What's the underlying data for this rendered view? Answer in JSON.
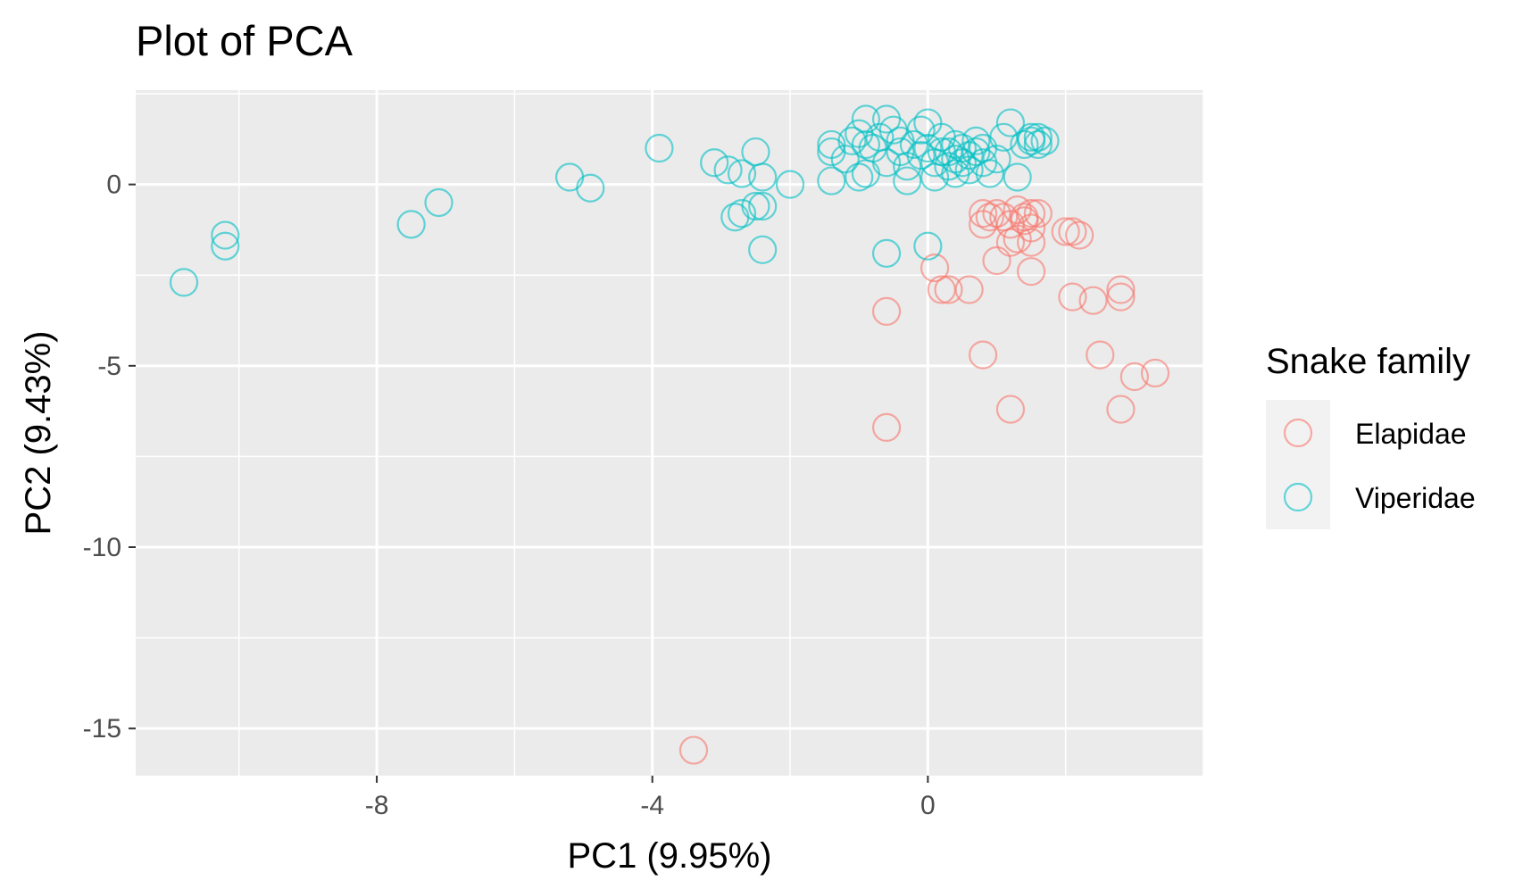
{
  "chart_data": {
    "type": "scatter",
    "title": "Plot of PCA",
    "xlabel": "PC1 (9.95%)",
    "ylabel": "PC2 (9.43%)",
    "xlim": [
      -11.5,
      4.0
    ],
    "ylim": [
      -16.3,
      2.6
    ],
    "xticks": [
      -8,
      -4,
      0
    ],
    "xtick_labels": [
      "-8",
      "-4",
      "0"
    ],
    "yticks": [
      0,
      -5,
      -10,
      -15
    ],
    "ytick_labels": [
      "0",
      "-5",
      "-10",
      "-15"
    ],
    "grid": true,
    "legend": {
      "title": "Snake family",
      "position": "right"
    },
    "series": [
      {
        "name": "Elapidae",
        "color": "#F8766D",
        "marker": "open-circle",
        "points": [
          [
            0.8,
            -0.8
          ],
          [
            0.8,
            -1.1
          ],
          [
            0.9,
            -0.9
          ],
          [
            1.0,
            -0.8
          ],
          [
            1.1,
            -0.9
          ],
          [
            1.2,
            -1.1
          ],
          [
            1.3,
            -0.7
          ],
          [
            1.4,
            -0.9
          ],
          [
            1.5,
            -0.8
          ],
          [
            1.4,
            -1.0
          ],
          [
            1.5,
            -1.2
          ],
          [
            1.6,
            -0.8
          ],
          [
            1.3,
            -1.5
          ],
          [
            1.2,
            -1.6
          ],
          [
            1.5,
            -1.6
          ],
          [
            2.0,
            -1.3
          ],
          [
            2.1,
            -1.3
          ],
          [
            2.2,
            -1.4
          ],
          [
            1.0,
            -2.1
          ],
          [
            1.5,
            -2.4
          ],
          [
            0.1,
            -2.3
          ],
          [
            0.2,
            -2.9
          ],
          [
            0.3,
            -2.9
          ],
          [
            0.6,
            -2.9
          ],
          [
            2.1,
            -3.1
          ],
          [
            2.4,
            -3.2
          ],
          [
            2.8,
            -2.9
          ],
          [
            2.8,
            -3.1
          ],
          [
            -0.6,
            -3.5
          ],
          [
            0.8,
            -4.7
          ],
          [
            2.5,
            -4.7
          ],
          [
            3.0,
            -5.3
          ],
          [
            3.3,
            -5.2
          ],
          [
            1.2,
            -6.2
          ],
          [
            2.8,
            -6.2
          ],
          [
            -0.6,
            -6.7
          ],
          [
            -3.4,
            -15.6
          ]
        ]
      },
      {
        "name": "Viperidae",
        "color": "#00BFC4",
        "marker": "open-circle",
        "points": [
          [
            -10.8,
            -2.7
          ],
          [
            -10.2,
            -1.4
          ],
          [
            -10.2,
            -1.7
          ],
          [
            -7.5,
            -1.1
          ],
          [
            -7.1,
            -0.5
          ],
          [
            -5.2,
            0.2
          ],
          [
            -4.9,
            -0.1
          ],
          [
            -3.9,
            1.0
          ],
          [
            -3.1,
            0.6
          ],
          [
            -2.9,
            0.4
          ],
          [
            -2.7,
            0.3
          ],
          [
            -2.5,
            0.9
          ],
          [
            -2.4,
            0.2
          ],
          [
            -2.0,
            0.0
          ],
          [
            -2.8,
            -0.9
          ],
          [
            -2.7,
            -0.8
          ],
          [
            -2.5,
            -0.6
          ],
          [
            -2.4,
            -0.6
          ],
          [
            -2.4,
            -1.8
          ],
          [
            -0.6,
            -1.9
          ],
          [
            0.0,
            -1.7
          ],
          [
            -1.4,
            0.9
          ],
          [
            -1.4,
            1.1
          ],
          [
            -1.4,
            0.1
          ],
          [
            -1.2,
            0.7
          ],
          [
            -1.1,
            1.2
          ],
          [
            -1.0,
            1.4
          ],
          [
            -1.0,
            0.2
          ],
          [
            -0.9,
            1.1
          ],
          [
            -0.9,
            0.3
          ],
          [
            -0.9,
            1.8
          ],
          [
            -0.8,
            1.0
          ],
          [
            -0.7,
            1.3
          ],
          [
            -0.6,
            1.8
          ],
          [
            -0.6,
            0.6
          ],
          [
            -0.5,
            1.5
          ],
          [
            -0.4,
            1.2
          ],
          [
            -0.4,
            0.9
          ],
          [
            -0.3,
            0.5
          ],
          [
            -0.3,
            0.1
          ],
          [
            -0.2,
            1.1
          ],
          [
            -0.1,
            1.5
          ],
          [
            -0.1,
            0.8
          ],
          [
            0.0,
            1.7
          ],
          [
            0.0,
            1.0
          ],
          [
            0.1,
            0.6
          ],
          [
            0.1,
            0.2
          ],
          [
            0.2,
            1.3
          ],
          [
            0.2,
            0.9
          ],
          [
            0.3,
            0.5
          ],
          [
            0.3,
            0.9
          ],
          [
            0.4,
            1.1
          ],
          [
            0.4,
            0.7
          ],
          [
            0.4,
            0.3
          ],
          [
            0.5,
            1.0
          ],
          [
            0.5,
            0.6
          ],
          [
            0.6,
            0.4
          ],
          [
            0.6,
            0.8
          ],
          [
            0.7,
            1.2
          ],
          [
            0.7,
            0.9
          ],
          [
            0.8,
            0.6
          ],
          [
            0.8,
            1.0
          ],
          [
            0.9,
            0.3
          ],
          [
            1.0,
            0.7
          ],
          [
            1.1,
            1.3
          ],
          [
            1.2,
            1.7
          ],
          [
            1.3,
            0.2
          ],
          [
            1.4,
            1.1
          ],
          [
            1.5,
            1.3
          ],
          [
            1.5,
            1.2
          ],
          [
            1.6,
            1.3
          ],
          [
            1.6,
            1.1
          ],
          [
            1.7,
            1.2
          ]
        ]
      }
    ]
  }
}
